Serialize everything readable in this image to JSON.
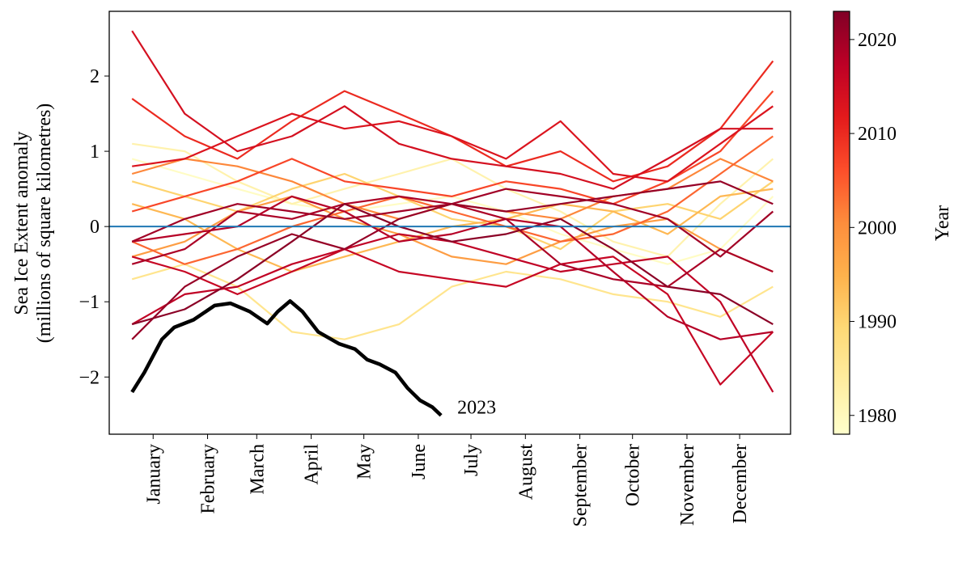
{
  "chart_data": {
    "type": "line",
    "ylabel": [
      "Sea Ice Extent anomaly",
      "(millions of square kilometres)"
    ],
    "xlim": [
      -10,
      378
    ],
    "xticks": [
      {
        "value": 15,
        "label": "January"
      },
      {
        "value": 46,
        "label": "February"
      },
      {
        "value": 74,
        "label": "March"
      },
      {
        "value": 105,
        "label": "April"
      },
      {
        "value": 135,
        "label": "May"
      },
      {
        "value": 166,
        "label": "June"
      },
      {
        "value": 196,
        "label": "July"
      },
      {
        "value": 227,
        "label": "August"
      },
      {
        "value": 258,
        "label": "September"
      },
      {
        "value": 288,
        "label": "October"
      },
      {
        "value": 319,
        "label": "November"
      },
      {
        "value": 349,
        "label": "December"
      }
    ],
    "ylim": [
      -2.76,
      2.86
    ],
    "yticks": [
      {
        "value": -2,
        "label": "−2"
      },
      {
        "value": -1,
        "label": "−1"
      },
      0,
      1,
      2
    ],
    "zero_line_color": "#1f77b4",
    "x": [
      3,
      33,
      63,
      94,
      124,
      155,
      185,
      216,
      247,
      277,
      308,
      338,
      368
    ],
    "series": [
      {
        "year": 1979,
        "values": [
          0.9,
          0.7,
          0.5,
          0.3,
          0.2,
          0.3,
          0.4,
          0.2,
          -0.1,
          -0.3,
          -0.5,
          -0.3,
          0.4
        ]
      },
      {
        "year": 1982,
        "values": [
          1.1,
          1.0,
          0.6,
          0.3,
          0.5,
          0.7,
          0.9,
          0.5,
          0.2,
          -0.2,
          -0.4,
          0.3,
          0.9
        ]
      },
      {
        "year": 1986,
        "values": [
          -0.7,
          -0.5,
          -0.8,
          -1.4,
          -1.5,
          -1.3,
          -0.8,
          -0.6,
          -0.7,
          -0.9,
          -1.0,
          -1.2,
          -0.8
        ]
      },
      {
        "year": 1990,
        "values": [
          0.6,
          0.4,
          0.2,
          0.5,
          0.7,
          0.4,
          0.1,
          0.0,
          -0.3,
          0.2,
          0.3,
          0.1,
          0.6
        ]
      },
      {
        "year": 1994,
        "values": [
          0.3,
          0.1,
          -0.3,
          -0.6,
          -0.4,
          -0.2,
          0.0,
          0.1,
          0.3,
          0.2,
          -0.1,
          0.4,
          0.5
        ]
      },
      {
        "year": 1998,
        "values": [
          -0.4,
          -0.2,
          0.2,
          0.4,
          0.1,
          -0.1,
          -0.4,
          -0.5,
          -0.2,
          0.0,
          0.1,
          -0.3,
          -0.6
        ]
      },
      {
        "year": 2001,
        "values": [
          0.7,
          0.9,
          0.8,
          0.6,
          0.3,
          0.1,
          0.3,
          0.2,
          0.1,
          0.4,
          0.5,
          0.9,
          0.6
        ]
      },
      {
        "year": 2004,
        "values": [
          -0.2,
          -0.5,
          -0.3,
          0.0,
          0.2,
          0.4,
          0.2,
          0.0,
          -0.2,
          -0.1,
          0.2,
          0.7,
          1.2
        ]
      },
      {
        "year": 2007,
        "values": [
          0.2,
          0.4,
          0.6,
          0.9,
          0.6,
          0.5,
          0.4,
          0.6,
          0.5,
          0.3,
          0.6,
          1.0,
          1.8
        ]
      },
      {
        "year": 2010,
        "values": [
          1.7,
          1.2,
          0.9,
          1.4,
          1.8,
          1.5,
          1.2,
          0.8,
          1.0,
          0.6,
          0.8,
          1.3,
          2.2
        ]
      },
      {
        "year": 2013,
        "values": [
          0.8,
          0.9,
          1.2,
          1.5,
          1.3,
          1.4,
          1.2,
          0.9,
          1.4,
          0.7,
          0.6,
          1.1,
          1.6
        ]
      },
      {
        "year": 2014,
        "values": [
          2.6,
          1.5,
          1.0,
          1.2,
          1.6,
          1.1,
          0.9,
          0.8,
          0.7,
          0.5,
          0.9,
          1.3,
          1.3
        ]
      },
      {
        "year": 2016,
        "values": [
          -0.4,
          -0.6,
          -0.9,
          -0.6,
          -0.3,
          -0.6,
          -0.7,
          -0.8,
          -0.5,
          -0.4,
          -0.9,
          -2.1,
          -1.4
        ]
      },
      {
        "year": 2017,
        "values": [
          -1.3,
          -0.9,
          -0.8,
          -0.5,
          -0.3,
          -0.1,
          -0.2,
          -0.4,
          -0.6,
          -0.5,
          -0.4,
          -1.0,
          -2.2
        ]
      },
      {
        "year": 2018,
        "values": [
          -0.2,
          -0.1,
          0.0,
          0.4,
          0.2,
          -0.2,
          -0.1,
          0.1,
          0.0,
          -0.6,
          -1.2,
          -1.5,
          -1.4
        ]
      },
      {
        "year": 2019,
        "values": [
          -0.5,
          -0.3,
          0.2,
          0.1,
          0.3,
          0.4,
          0.3,
          0.1,
          -0.5,
          -0.7,
          -0.8,
          -0.3,
          -0.6
        ]
      },
      {
        "year": 2020,
        "values": [
          -0.2,
          0.1,
          0.3,
          0.2,
          0.1,
          0.2,
          0.3,
          0.5,
          0.4,
          0.3,
          0.1,
          -0.4,
          0.2
        ]
      },
      {
        "year": 2021,
        "values": [
          -1.5,
          -0.8,
          -0.4,
          -0.1,
          -0.3,
          0.1,
          0.3,
          0.2,
          0.3,
          0.4,
          0.5,
          0.6,
          0.3
        ]
      },
      {
        "year": 2022,
        "values": [
          -1.3,
          -1.1,
          -0.7,
          -0.2,
          0.3,
          0.0,
          -0.2,
          -0.1,
          0.1,
          -0.3,
          -0.8,
          -0.9,
          -1.3
        ]
      }
    ],
    "highlight": {
      "name": "2023",
      "color": "#000000",
      "x": [
        3,
        10,
        20,
        27,
        38,
        50,
        59,
        70,
        80,
        86,
        93,
        100,
        109,
        121,
        130,
        137,
        144,
        153,
        160,
        167,
        174,
        179
      ],
      "values": [
        -2.2,
        -1.94,
        -1.5,
        -1.34,
        -1.24,
        -1.05,
        -1.02,
        -1.13,
        -1.29,
        -1.13,
        -0.99,
        -1.13,
        -1.4,
        -1.56,
        -1.63,
        -1.77,
        -1.83,
        -1.94,
        -2.15,
        -2.31,
        -2.4,
        -2.51
      ]
    },
    "colorbar": {
      "label": "Year",
      "lim": [
        1978,
        2023
      ],
      "ticks": [
        1980,
        1990,
        2000,
        2010,
        2020
      ],
      "colormap": [
        "#ffffcc",
        "#ffeda0",
        "#fed976",
        "#feb24c",
        "#fd8d3c",
        "#fc4e2a",
        "#e31a1c",
        "#bd0026",
        "#800026"
      ]
    }
  }
}
